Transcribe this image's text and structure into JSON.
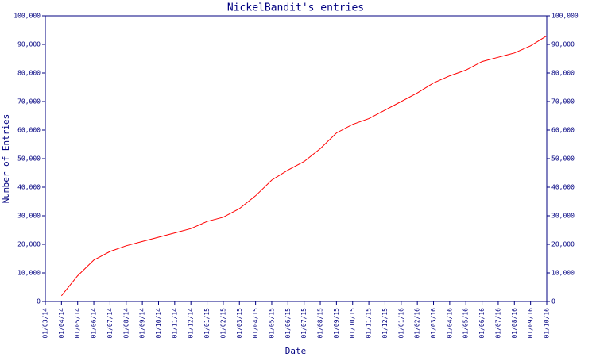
{
  "chart_data": {
    "type": "line",
    "title": "NickelBandit's entries",
    "x_label": "Date",
    "y_label": "Number of Entries",
    "categories": [
      "01/03/14",
      "01/04/14",
      "01/05/14",
      "01/06/14",
      "01/07/14",
      "01/08/14",
      "01/09/14",
      "01/10/14",
      "01/11/14",
      "01/12/14",
      "01/01/15",
      "01/02/15",
      "01/03/15",
      "01/04/15",
      "01/05/15",
      "01/06/15",
      "01/07/15",
      "01/08/15",
      "01/09/15",
      "01/10/15",
      "01/11/15",
      "01/12/15",
      "01/01/16",
      "01/02/16",
      "01/03/16",
      "01/04/16",
      "01/05/16",
      "01/06/16",
      "01/07/16",
      "01/08/16",
      "01/09/16",
      "01/10/16"
    ],
    "series": [
      {
        "name": "Entries",
        "color": "#ff0000",
        "values": [
          null,
          2000,
          9000,
          14500,
          17500,
          19500,
          21000,
          22500,
          24000,
          25500,
          28000,
          29500,
          32500,
          37000,
          42500,
          46000,
          49000,
          53500,
          59000,
          62000,
          64000,
          67000,
          70000,
          73000,
          76500,
          79000,
          81000,
          84000,
          85500,
          87000,
          89500,
          93000
        ]
      }
    ],
    "ylim": [
      0,
      100000
    ],
    "yticks": [
      0,
      {
        "value": 10000,
        "label": "10,000"
      },
      {
        "value": 20000,
        "label": "20,000"
      },
      {
        "value": 30000,
        "label": "30,000"
      },
      {
        "value": 40000,
        "label": "40,000"
      },
      {
        "value": 50000,
        "label": "50,000"
      },
      {
        "value": 60000,
        "label": "60,000"
      },
      {
        "value": 70000,
        "label": "70,000"
      },
      {
        "value": 80000,
        "label": "80,000"
      },
      {
        "value": 90000,
        "label": "90,000"
      },
      {
        "value": 100000,
        "label": "100,000"
      }
    ],
    "y2lim": [
      0,
      100000
    ],
    "y2ticks": [
      0,
      {
        "value": 10000,
        "label": "10,000"
      },
      {
        "value": 20000,
        "label": "20,000"
      },
      {
        "value": 30000,
        "label": "30,000"
      },
      {
        "value": 40000,
        "label": "40,000"
      },
      {
        "value": 50000,
        "label": "50,000"
      },
      {
        "value": 60000,
        "label": "60,000"
      },
      {
        "value": 70000,
        "label": "70,000"
      },
      {
        "value": 80000,
        "label": "80,000"
      },
      {
        "value": 90000,
        "label": "90,000"
      },
      {
        "value": 100000,
        "label": "100,000"
      }
    ],
    "axis_color": "#000080",
    "text_color": "#000080"
  }
}
